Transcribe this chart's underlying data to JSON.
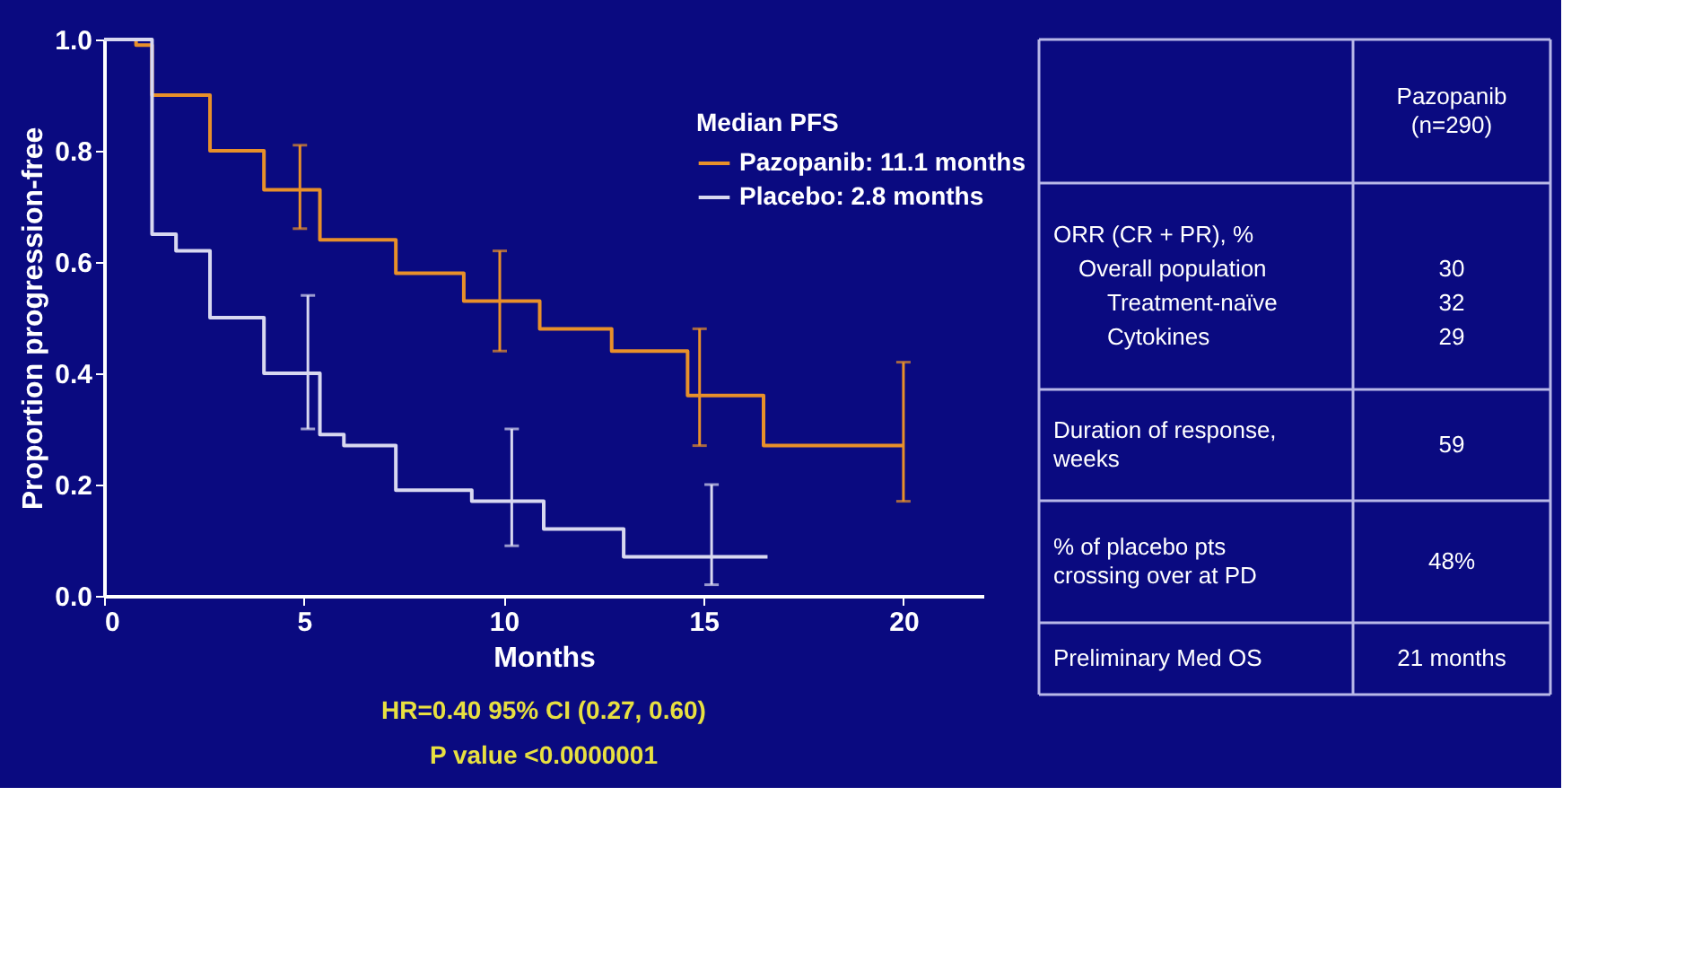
{
  "chart_data": [
    {
      "type": "step",
      "xlabel": "Months",
      "ylabel": "Proportion progression-free",
      "legend_title": "Median PFS",
      "legend": "top right",
      "grid": false,
      "xlim": [
        0,
        22
      ],
      "ylim": [
        0,
        1
      ],
      "xticks": [
        0,
        5,
        10,
        15,
        20
      ],
      "yticks": [
        {
          "value": 0,
          "label": "0.0"
        },
        0.2,
        0.4,
        0.6,
        0.8,
        {
          "value": 1,
          "label": "1.0"
        }
      ],
      "annotations": [
        "HR=0.40    95% CI (0.27, 0.60)",
        "P value <0.0000001"
      ],
      "series": [
        {
          "name": "Pazopanib: 11.1 months",
          "color": "#e8902a",
          "x": [
            0,
            0.8,
            1.2,
            2.65,
            4.0,
            4.9,
            5.4,
            7.3,
            9.0,
            9.9,
            10.9,
            12.7,
            14.6,
            14.9,
            16.5,
            20.0
          ],
          "values": [
            1.0,
            0.99,
            0.9,
            0.8,
            0.73,
            0.73,
            0.64,
            0.58,
            0.53,
            0.53,
            0.48,
            0.44,
            0.36,
            0.36,
            0.27,
            0.27
          ],
          "errors": [
            null,
            null,
            null,
            null,
            null,
            [
              0.66,
              0.81
            ],
            null,
            null,
            null,
            [
              0.44,
              0.62
            ],
            null,
            null,
            null,
            [
              0.27,
              0.48
            ],
            null,
            [
              0.17,
              0.42
            ]
          ]
        },
        {
          "name": "Placebo: 2.8 months",
          "color": "#d8d8f0",
          "x": [
            0,
            1.2,
            1.8,
            2.65,
            4.0,
            5.1,
            5.4,
            6.0,
            7.3,
            9.2,
            10.2,
            11.0,
            13.0,
            15.2,
            16.6
          ],
          "values": [
            1.0,
            0.65,
            0.62,
            0.5,
            0.4,
            0.4,
            0.29,
            0.27,
            0.19,
            0.17,
            0.17,
            0.12,
            0.07,
            0.07,
            0.07
          ],
          "errors": [
            null,
            null,
            null,
            null,
            null,
            [
              0.3,
              0.54
            ],
            null,
            null,
            null,
            null,
            [
              0.09,
              0.3
            ],
            null,
            null,
            [
              0.02,
              0.2
            ],
            null
          ]
        }
      ]
    },
    {
      "type": "other",
      "annotations": [
        "Pazopanib (n=290)",
        "ORR (CR + PR), %",
        "Overall population",
        "30",
        "Treatment-naïve",
        "32",
        "Cytokines",
        "29",
        "Duration of response, weeks",
        "59",
        "% of placebo pts crossing over at PD",
        "48%",
        "Preliminary Med OS",
        "21 months"
      ]
    }
  ]
}
